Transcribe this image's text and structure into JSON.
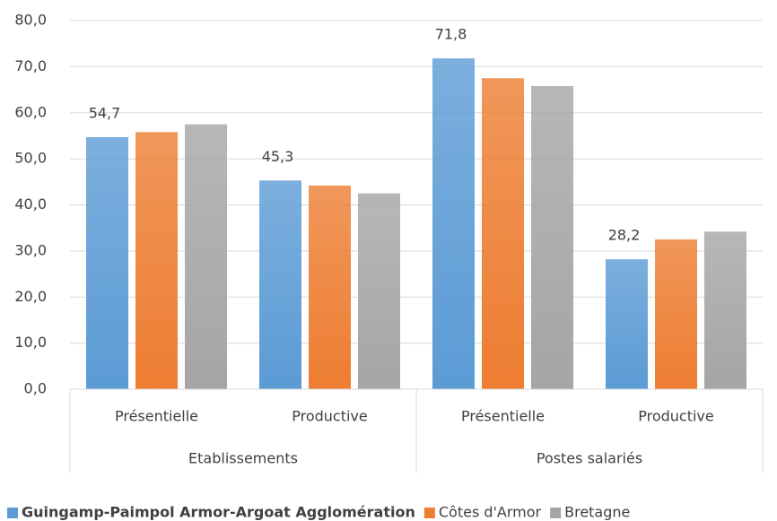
{
  "chart_data": {
    "type": "bar",
    "categories": [
      "Présentielle",
      "Productive",
      "Présentielle",
      "Productive"
    ],
    "groups": [
      {
        "name": "Etablissements",
        "span": 2
      },
      {
        "name": "Postes salariés",
        "span": 2
      }
    ],
    "series": [
      {
        "name": "Guingamp-Paimpol Armor-Argoat Agglomération",
        "color": "#5b9bd5",
        "values": [
          54.7,
          45.3,
          71.8,
          28.2
        ],
        "value_labels": [
          "54,7",
          "45,3",
          "71,8",
          "28,2"
        ]
      },
      {
        "name": "Côtes d'Armor",
        "color": "#ed7d31",
        "values": [
          55.8,
          44.2,
          67.5,
          32.5
        ]
      },
      {
        "name": "Bretagne",
        "color": "#a5a5a5",
        "values": [
          57.5,
          42.5,
          65.8,
          34.2
        ]
      }
    ],
    "ylim": [
      0,
      80
    ],
    "yticks": [
      {
        "value": 0,
        "label": "0,0"
      },
      {
        "value": 10,
        "label": "10,0"
      },
      {
        "value": 20,
        "label": "20,0"
      },
      {
        "value": 30,
        "label": "30,0"
      },
      {
        "value": 40,
        "label": "40,0"
      },
      {
        "value": 50,
        "label": "50,0"
      },
      {
        "value": 60,
        "label": "60,0"
      },
      {
        "value": 70,
        "label": "70,0"
      },
      {
        "value": 80,
        "label": "80,0"
      }
    ],
    "grid": true,
    "legend": "bottom"
  }
}
